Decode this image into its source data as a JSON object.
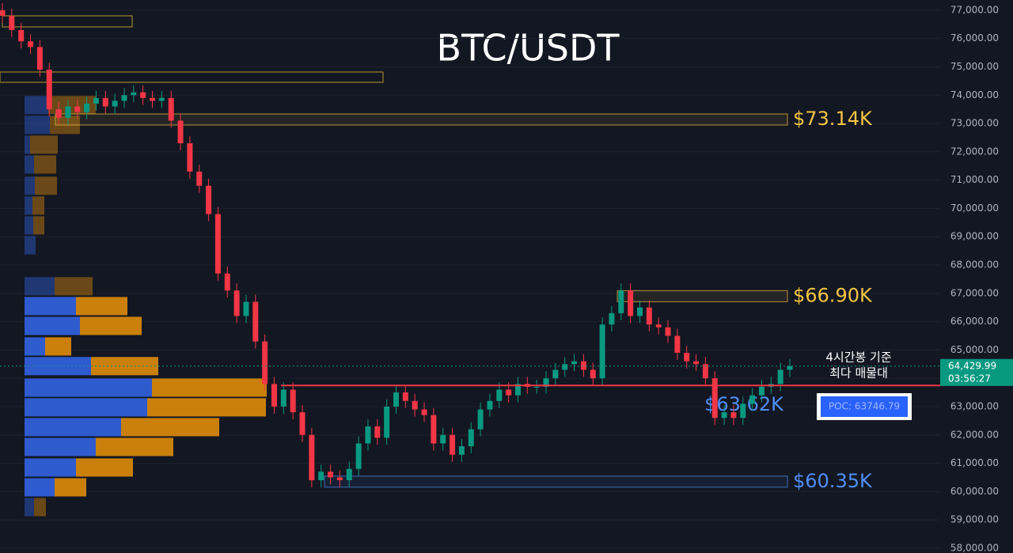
{
  "chart_data": {
    "type": "candlestick",
    "title": "BTC/USDT",
    "ylim": [
      57830,
      77360
    ],
    "yticks": [
      {
        "value": 58000,
        "label": "58,000.00"
      },
      {
        "value": 59000,
        "label": "59,000.00"
      },
      {
        "value": 60000,
        "label": "60,000.00"
      },
      {
        "value": 61000,
        "label": "61,000.00"
      },
      {
        "value": 62000,
        "label": "62,000.00"
      },
      {
        "value": 63000,
        "label": "63,000.00"
      },
      {
        "value": 64000,
        "label": "64,000.00"
      },
      {
        "value": 65000,
        "label": "65,000.00"
      },
      {
        "value": 66000,
        "label": "66,000.00"
      },
      {
        "value": 67000,
        "label": "67,000.00"
      },
      {
        "value": 68000,
        "label": "68,000.00"
      },
      {
        "value": 69000,
        "label": "69,000.00"
      },
      {
        "value": 70000,
        "label": "70,000.00"
      },
      {
        "value": 71000,
        "label": "71,000.00"
      },
      {
        "value": 72000,
        "label": "72,000.00"
      },
      {
        "value": 73000,
        "label": "73,000.00"
      },
      {
        "value": 74000,
        "label": "74,000.00"
      },
      {
        "value": 75000,
        "label": "75,000.00"
      },
      {
        "value": 76000,
        "label": "76,000.00"
      },
      {
        "value": 77000,
        "label": "77,000.00"
      }
    ],
    "grid": true,
    "up_color": "#089981",
    "down_color": "#f23645",
    "open": [
      77000,
      76800,
      76300,
      75900,
      75700,
      74900,
      73500,
      73200,
      73600,
      73400,
      73700,
      73900,
      73600,
      73800,
      74000,
      74100,
      73900,
      73800,
      73900,
      73100,
      72300,
      71300,
      70800,
      69800,
      67700,
      67100,
      66200,
      66700,
      65300,
      63800,
      63000,
      63600,
      62800,
      62000,
      60400,
      60700,
      60500,
      60400,
      60800,
      61700,
      62300,
      61900,
      63000,
      63500,
      63200,
      62900,
      62700,
      61700,
      62000,
      61300,
      61600,
      62200,
      62900,
      63200,
      63600,
      63400,
      63800,
      63700,
      63700,
      64000,
      64300,
      64500,
      64600,
      64300,
      64000,
      65900,
      66300,
      67100,
      66200,
      66500,
      65900,
      65800,
      65500,
      64900,
      64600,
      64500,
      64000,
      62600,
      62800,
      62600,
      63100,
      63400,
      63700,
      63800,
      64300
    ],
    "high": [
      77250,
      77050,
      76550,
      76150,
      75950,
      75150,
      73750,
      73850,
      73850,
      73950,
      74150,
      74150,
      74050,
      74250,
      74350,
      74350,
      74150,
      74150,
      74150,
      73350,
      72550,
      71550,
      71050,
      70050,
      67950,
      67350,
      66950,
      66950,
      65550,
      64050,
      63850,
      63850,
      63050,
      62250,
      60950,
      60950,
      60750,
      61050,
      61950,
      62550,
      62550,
      63250,
      63750,
      63750,
      63450,
      63150,
      62950,
      62250,
      62250,
      61850,
      62450,
      63150,
      63450,
      63850,
      63850,
      64050,
      64050,
      63950,
      64250,
      64550,
      64750,
      64850,
      64850,
      64550,
      66150,
      66550,
      67350,
      67350,
      66750,
      66750,
      66150,
      66050,
      65750,
      65150,
      64850,
      64750,
      64250,
      63050,
      63050,
      63350,
      63650,
      63950,
      64050,
      64550,
      64680
    ],
    "low": [
      76550,
      76050,
      75650,
      75450,
      74650,
      73250,
      72950,
      72950,
      73150,
      73150,
      73450,
      73350,
      73350,
      73550,
      73750,
      73650,
      73550,
      73550,
      72850,
      72050,
      71050,
      70550,
      69550,
      67450,
      66850,
      65950,
      65950,
      65050,
      63550,
      62750,
      62750,
      62550,
      61750,
      60150,
      60150,
      60250,
      60150,
      60150,
      60550,
      61450,
      61650,
      61650,
      62750,
      62950,
      62650,
      62450,
      61450,
      61450,
      61050,
      61050,
      61350,
      61950,
      62650,
      62950,
      63150,
      63150,
      63450,
      63450,
      63450,
      63750,
      64050,
      64250,
      64050,
      63750,
      63750,
      65650,
      66050,
      65950,
      65950,
      65650,
      65550,
      65250,
      64650,
      64350,
      64250,
      63750,
      62350,
      62350,
      62350,
      62350,
      62850,
      63150,
      63450,
      63550,
      64050
    ],
    "close": [
      76800,
      76300,
      75900,
      75700,
      74900,
      73500,
      73200,
      73600,
      73400,
      73700,
      73900,
      73600,
      73800,
      74000,
      74100,
      73900,
      73800,
      73900,
      73100,
      72300,
      71300,
      70800,
      69800,
      67700,
      67100,
      66200,
      66700,
      65300,
      63800,
      63000,
      63600,
      62800,
      62000,
      60400,
      60700,
      60500,
      60400,
      60800,
      61700,
      62300,
      61900,
      63000,
      63500,
      63200,
      62900,
      62700,
      61700,
      62000,
      61300,
      61600,
      62200,
      62900,
      63200,
      63600,
      63400,
      63800,
      63700,
      63700,
      64000,
      64300,
      64500,
      64600,
      64300,
      64000,
      65900,
      66300,
      67100,
      66200,
      66500,
      65900,
      65800,
      65500,
      64900,
      64600,
      64500,
      64000,
      62600,
      62800,
      62600,
      63100,
      63400,
      63700,
      63800,
      64300,
      64430
    ],
    "volume_profile": {
      "buy_color": "#2f5fd8",
      "sell_color": "#d4860b",
      "price": [
        59450,
        60150,
        60850,
        61575,
        62275,
        62975,
        63670,
        64430,
        65125,
        65850,
        66550,
        67250,
        68700,
        69400,
        70100,
        70800,
        71550,
        72250,
        72950,
        73650
      ],
      "buy": [
        12,
        38,
        65,
        90,
        122,
        155,
        161,
        84,
        26,
        70,
        65,
        38,
        14,
        11,
        10,
        13,
        12,
        7,
        32,
        30
      ],
      "sell": [
        15,
        40,
        72,
        98,
        124,
        150,
        145,
        85,
        33,
        78,
        65,
        48,
        0,
        14,
        15,
        28,
        28,
        35,
        38,
        60
      ]
    },
    "levels": [
      {
        "value": 73140,
        "label": "$73.14K",
        "color": "#f5c542"
      },
      {
        "value": 66900,
        "label": "$66.90K",
        "color": "#f5c542"
      },
      {
        "value": 60350,
        "label": "$60.35K",
        "color": "#4f8ef7"
      }
    ],
    "marker": {
      "value": 63620,
      "label": "$63.62K",
      "color": "#4f8ef7"
    },
    "poc": {
      "value": 63746.79,
      "label": "POC: 63746.79",
      "color": "#f23645"
    },
    "note": [
      "4시간봉 기준",
      "최다 매물대"
    ],
    "last_price": {
      "value": 64429.99,
      "label": "64,429.99",
      "countdown": "03:56:27"
    }
  }
}
